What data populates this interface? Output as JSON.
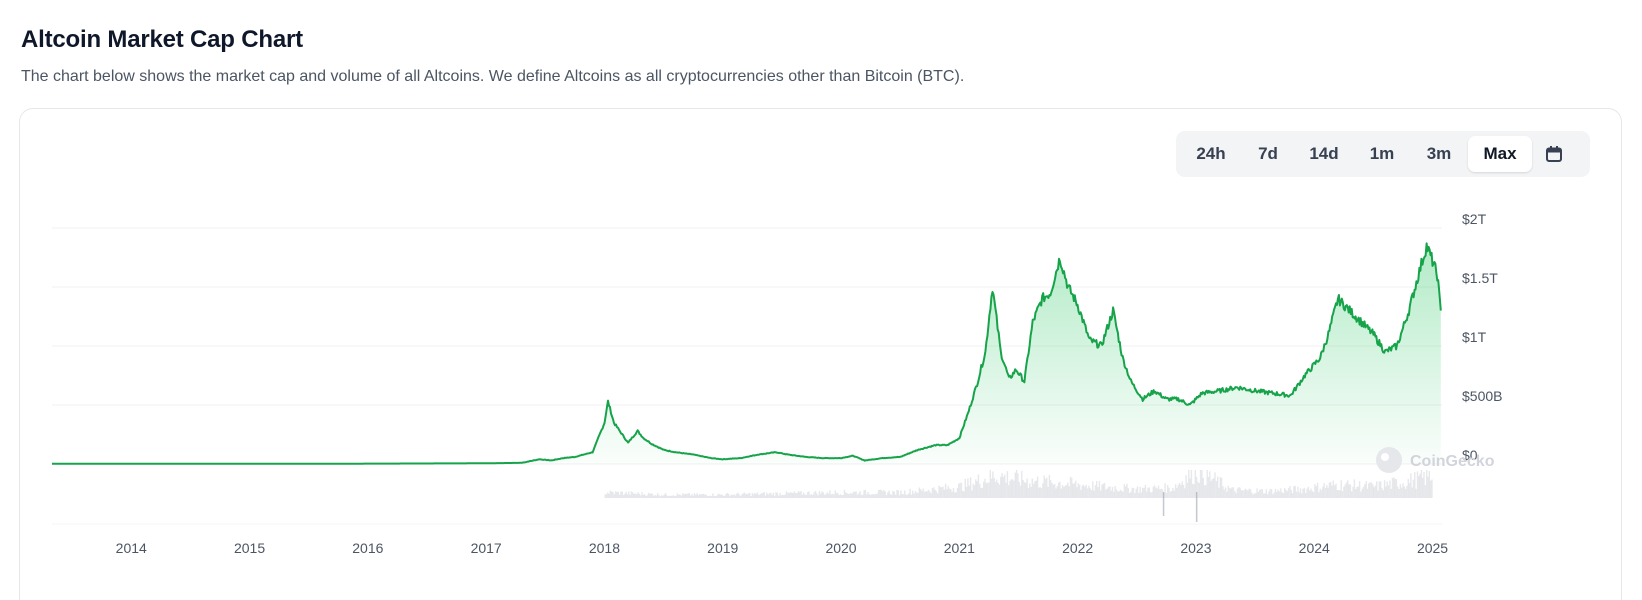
{
  "header": {
    "title": "Altcoin Market Cap Chart",
    "subtitle": "The chart below shows the market cap and volume of all Altcoins. We define Altcoins as all cryptocurrencies other than Bitcoin (BTC)."
  },
  "range_selector": {
    "options": [
      "24h",
      "7d",
      "14d",
      "1m",
      "3m",
      "Max"
    ],
    "selected": "Max",
    "calendar_icon": "calendar-icon"
  },
  "watermark": "CoinGecko",
  "colors": {
    "line": "#16a34a",
    "area": "#22c55e",
    "volume": "#d1d5db",
    "grid": "#f0f0f0"
  },
  "chart_data": {
    "type": "area",
    "series": [
      {
        "x": [
          2013.33,
          2014.0,
          2015.0,
          2016.0,
          2017.0,
          2017.3,
          2017.45,
          2017.55,
          2017.65,
          2017.75,
          2017.9,
          2018.0,
          2018.03,
          2018.08,
          2018.15,
          2018.2,
          2018.28,
          2018.33,
          2018.4,
          2018.5,
          2018.6,
          2018.75,
          2018.9,
          2019.0,
          2019.15,
          2019.3,
          2019.45,
          2019.55,
          2019.7,
          2019.85,
          2020.0,
          2020.1,
          2020.2,
          2020.35,
          2020.5,
          2020.65,
          2020.8,
          2020.9,
          2021.0,
          2021.08,
          2021.15,
          2021.22,
          2021.28,
          2021.35,
          2021.42,
          2021.48,
          2021.55,
          2021.62,
          2021.7,
          2021.77,
          2021.85,
          2021.92,
          2022.0,
          2022.1,
          2022.2,
          2022.3,
          2022.38,
          2022.45,
          2022.55,
          2022.65,
          2022.75,
          2022.85,
          2022.95,
          2023.05,
          2023.2,
          2023.35,
          2023.5,
          2023.65,
          2023.8,
          2023.92,
          2024.05,
          2024.12,
          2024.2,
          2024.3,
          2024.4,
          2024.5,
          2024.6,
          2024.7,
          2024.8,
          2024.88,
          2024.95,
          2025.0,
          2025.04,
          2025.07
        ],
        "y": [
          0.002,
          0.002,
          0.002,
          0.003,
          0.006,
          0.01,
          0.04,
          0.03,
          0.05,
          0.06,
          0.1,
          0.35,
          0.53,
          0.35,
          0.25,
          0.18,
          0.28,
          0.22,
          0.17,
          0.12,
          0.1,
          0.08,
          0.05,
          0.04,
          0.05,
          0.08,
          0.1,
          0.08,
          0.06,
          0.05,
          0.05,
          0.07,
          0.03,
          0.05,
          0.06,
          0.12,
          0.16,
          0.16,
          0.22,
          0.45,
          0.68,
          0.95,
          1.5,
          0.95,
          0.72,
          0.8,
          0.7,
          1.2,
          1.4,
          1.45,
          1.75,
          1.5,
          1.35,
          1.05,
          1.0,
          1.3,
          0.9,
          0.7,
          0.55,
          0.62,
          0.55,
          0.55,
          0.5,
          0.6,
          0.62,
          0.65,
          0.62,
          0.6,
          0.58,
          0.75,
          0.9,
          1.1,
          1.4,
          1.3,
          1.2,
          1.1,
          0.95,
          1.0,
          1.3,
          1.6,
          1.85,
          1.72,
          1.6,
          1.3
        ]
      },
      {
        "name": "",
        "x": [
          2018.0,
          2018.5,
          2019.0,
          2019.5,
          2020.0,
          2020.5,
          2021.0,
          2021.3,
          2021.6,
          2021.9,
          2022.2,
          2022.5,
          2022.8,
          2023.0,
          2023.3,
          2023.6,
          2023.9,
          2024.2,
          2024.5,
          2024.8,
          2025.0
        ],
        "y": [
          0.05,
          0.03,
          0.03,
          0.04,
          0.05,
          0.05,
          0.1,
          0.2,
          0.15,
          0.13,
          0.1,
          0.08,
          0.09,
          0.25,
          0.07,
          0.06,
          0.08,
          0.12,
          0.1,
          0.15,
          0.2
        ]
      }
    ],
    "xlabel": "",
    "ylabel": "",
    "ylim": [
      0,
      2
    ],
    "xlim": [
      2013.33,
      2025.1
    ],
    "y_ticks": [
      {
        "value": 0,
        "label": "$0"
      },
      {
        "value": 0.5,
        "label": "$500B"
      },
      {
        "value": 1,
        "label": "$1T"
      },
      {
        "value": 1.5,
        "label": "$1.5T"
      },
      {
        "value": 2,
        "label": "$2T"
      }
    ],
    "x_ticks": [
      {
        "value": 2014,
        "label": "2014"
      },
      {
        "value": 2015,
        "label": "2015"
      },
      {
        "value": 2016,
        "label": "2016"
      },
      {
        "value": 2017,
        "label": "2017"
      },
      {
        "value": 2018,
        "label": "2018"
      },
      {
        "value": 2019,
        "label": "2019"
      },
      {
        "value": 2020,
        "label": "2020"
      },
      {
        "value": 2021,
        "label": "2021"
      },
      {
        "value": 2022,
        "label": "2022"
      },
      {
        "value": 2023,
        "label": "2023"
      },
      {
        "value": 2024,
        "label": "2024"
      },
      {
        "value": 2025,
        "label": "2025"
      }
    ],
    "grid": true,
    "legend": "none"
  }
}
